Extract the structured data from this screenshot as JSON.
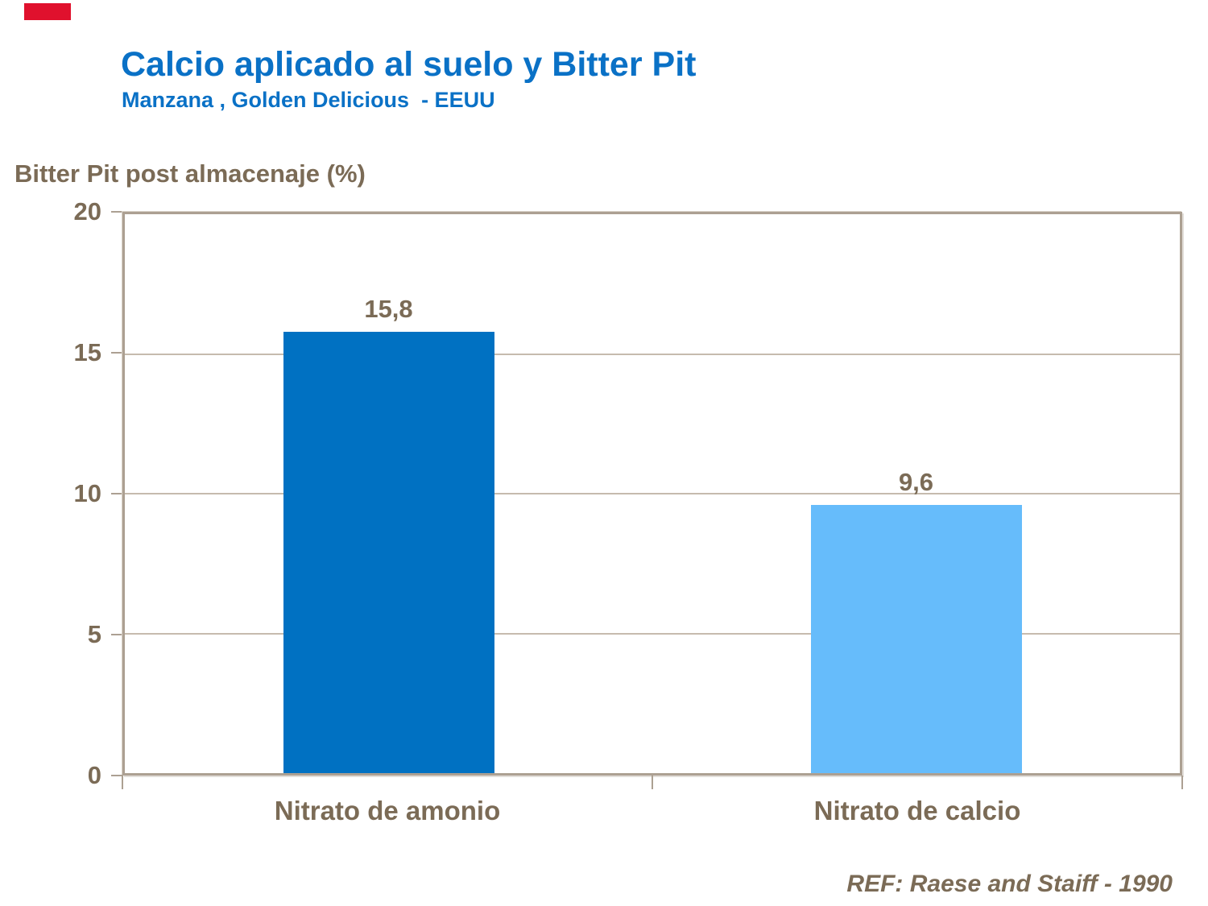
{
  "slide": {
    "title": "Calcio aplicado al suelo y Bitter Pit",
    "subtitle": "Manzana , Golden Delicious  - EEUU",
    "reference": "REF: Raese and Staiff - 1990",
    "accent_color": "#E0112D",
    "title_color": "#0A71C6",
    "text_color": "#7B6B56",
    "frame_color": "#ACA092",
    "gridline_color": "#C6BBAE"
  },
  "chart_data": {
    "type": "bar",
    "title": "Calcio aplicado al suelo y Bitter Pit",
    "subtitle": "Manzana , Golden Delicious - EEUU",
    "ylabel": "Bitter Pit post almacenaje (%)",
    "xlabel": "",
    "categories": [
      "Nitrato de amonio",
      "Nitrato de calcio"
    ],
    "values": [
      15.8,
      9.6
    ],
    "value_labels": [
      "15,8",
      "9,6"
    ],
    "bar_colors": [
      "#0071C2",
      "#66BCFB"
    ],
    "ylim": [
      0,
      20
    ],
    "yticks": [
      0,
      5,
      10,
      15,
      20
    ],
    "grid": "horizontal",
    "legend": "none"
  }
}
